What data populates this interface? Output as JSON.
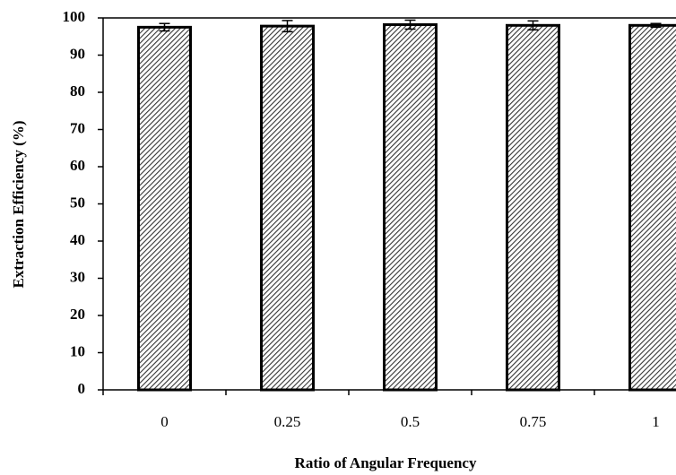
{
  "chart_data": {
    "type": "bar",
    "x_label": "Ratio of Angular Frequency",
    "y_label": "Extraction Efficiency (%)",
    "categories": [
      "0",
      "0.25",
      "0.5",
      "0.75",
      "1"
    ],
    "values": [
      97.5,
      97.8,
      98.2,
      98.0,
      98.0
    ],
    "errors": [
      1.0,
      1.5,
      1.2,
      1.2,
      0.5
    ],
    "color": "#333333",
    "ylim": [
      0,
      100
    ],
    "yticks": [
      0,
      10,
      20,
      30,
      40,
      50,
      60,
      70,
      80,
      90,
      100
    ]
  }
}
